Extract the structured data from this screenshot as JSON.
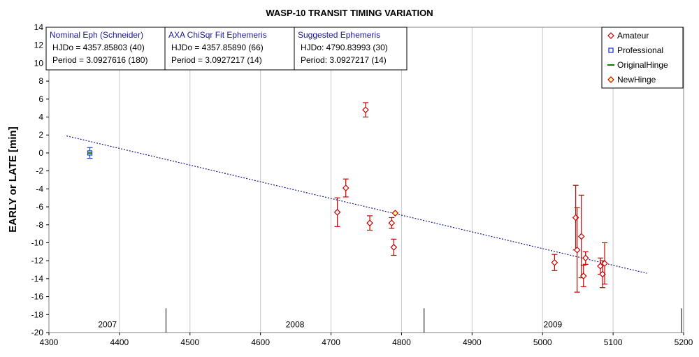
{
  "chart_data": {
    "type": "scatter",
    "title": "WASP-10 TRANSIT TIMING VARIATION",
    "xlabel": "",
    "ylabel": "EARLY or LATE [min]",
    "xlim": [
      4300,
      5200
    ],
    "ylim": [
      -20,
      14
    ],
    "x_ticks": [
      4300,
      4400,
      4500,
      4600,
      4700,
      4800,
      4900,
      5000,
      5100,
      5200
    ],
    "y_ticks": [
      -20,
      -18,
      -16,
      -14,
      -12,
      -10,
      -8,
      -6,
      -4,
      -2,
      0,
      2,
      4,
      6,
      8,
      10,
      12,
      14
    ],
    "grid": "vertical",
    "legend_position": "top-right",
    "year_bands": [
      {
        "label": "2007",
        "start": 4300,
        "end": 4466
      },
      {
        "label": "2008",
        "start": 4466,
        "end": 4832
      },
      {
        "label": "2009",
        "start": 4832,
        "end": 5197
      }
    ],
    "info_boxes": [
      {
        "title": "Nominal Eph (Schneider)",
        "lines": [
          "HJDo = 4357.85803 (40)",
          "Period = 3.0927616 (180)"
        ]
      },
      {
        "title": "AXA ChiSqr Fit Ephemeris",
        "lines": [
          "HJDo = 4357.85890 (66)",
          "Period = 3.0927217 (14)"
        ]
      },
      {
        "title": "Suggested Ephemeris",
        "lines": [
          "HJDo:  4790.83993 (30)",
          "Period: 3.0927217 (14)"
        ]
      }
    ],
    "series": [
      {
        "name": "Amateur",
        "marker": "diamond",
        "color": "#cc0000",
        "points": [
          {
            "x": 4709,
            "y": -6.6,
            "err": 1.6
          },
          {
            "x": 4721,
            "y": -3.9,
            "err": 1.0
          },
          {
            "x": 4749,
            "y": 4.8,
            "err": 0.8
          },
          {
            "x": 4755,
            "y": -7.8,
            "err": 0.8
          },
          {
            "x": 4786,
            "y": -7.8,
            "err": 0.6
          },
          {
            "x": 4789,
            "y": -10.5,
            "err": 0.9
          },
          {
            "x": 5017,
            "y": -12.2,
            "err": 0.9
          },
          {
            "x": 5047,
            "y": -7.2,
            "err": 3.6
          },
          {
            "x": 5049,
            "y": -10.8,
            "err": 4.7
          },
          {
            "x": 5055,
            "y": -9.3,
            "err": 4.6
          },
          {
            "x": 5058,
            "y": -13.7,
            "err": 1.2
          },
          {
            "x": 5061,
            "y": -11.7,
            "err": 0.7
          },
          {
            "x": 5082,
            "y": -12.6,
            "err": 0.9
          },
          {
            "x": 5085,
            "y": -13.5,
            "err": 1.5
          },
          {
            "x": 5088,
            "y": -12.3,
            "err": 2.3
          }
        ]
      },
      {
        "name": "Professional",
        "marker": "square",
        "color": "#1a3cc8",
        "points": [
          {
            "x": 4358,
            "y": 0.0,
            "err": 0.6
          }
        ]
      },
      {
        "name": "OriginalHinge",
        "marker": "line",
        "color": "#008000",
        "points": [
          {
            "x": 4358,
            "y": 0.0
          }
        ]
      },
      {
        "name": "NewHinge",
        "marker": "diamond",
        "color": "#cc0000",
        "fill": "#ffff99",
        "points": [
          {
            "x": 4791,
            "y": -6.7
          }
        ]
      }
    ],
    "trend_line": {
      "style": "dotted",
      "color": "#1a1a99",
      "x": [
        4325,
        5148
      ],
      "y": [
        1.9,
        -13.4
      ]
    }
  }
}
